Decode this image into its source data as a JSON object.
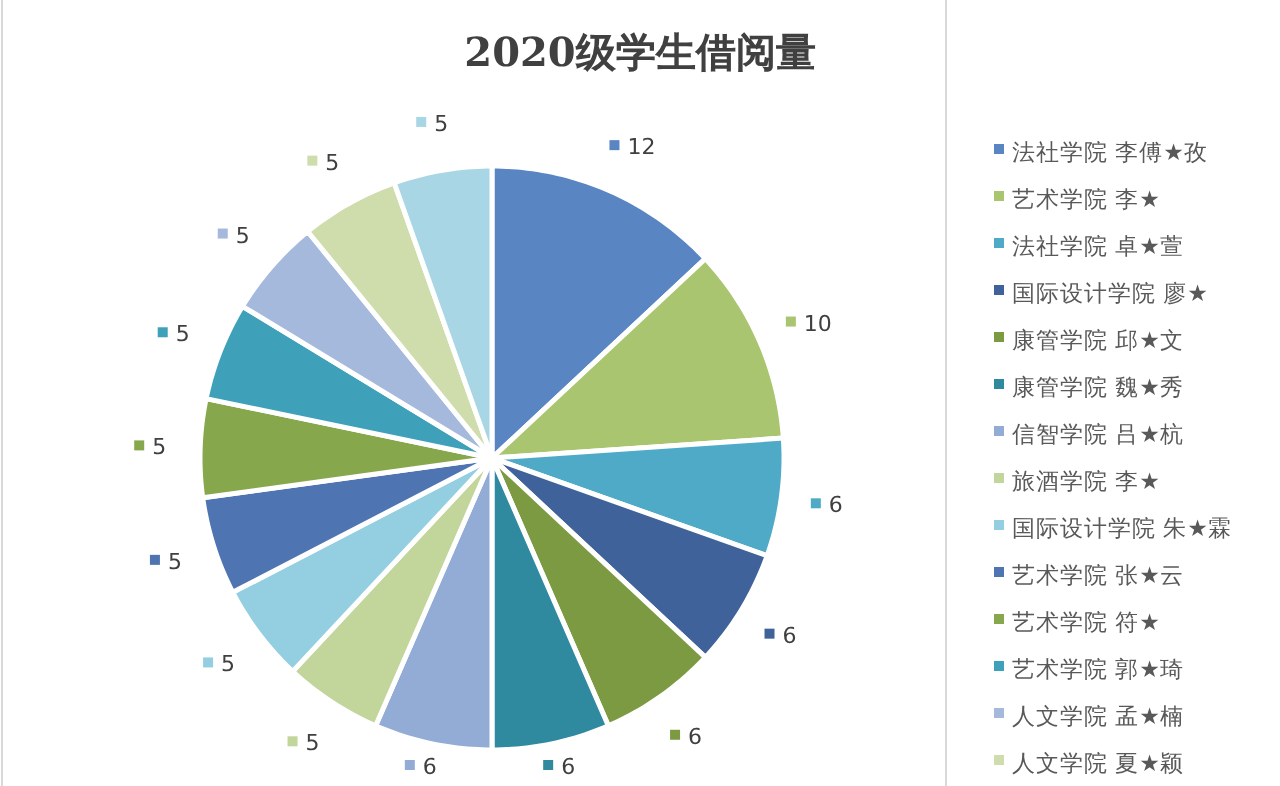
{
  "chart_data": {
    "type": "pie",
    "title": "2020级学生借阅量",
    "categories": [
      "法社学院 李傅★孜",
      "艺术学院 李★",
      "法社学院 卓★萱",
      "国际设计学院 廖★",
      "康管学院 邱★文",
      "康管学院 魏★秀",
      "信智学院 吕★杭",
      "旅酒学院 李★",
      "国际设计学院 朱★霖",
      "艺术学院 张★云",
      "艺术学院 符★",
      "艺术学院 郭★琦",
      "人文学院 孟★楠",
      "人文学院 夏★颖",
      null
    ],
    "values": [
      12,
      10,
      6,
      6,
      6,
      6,
      6,
      5,
      5,
      5,
      5,
      5,
      5,
      5,
      5
    ],
    "colors": [
      "#5a85c3",
      "#a9c56f",
      "#4eaac6",
      "#3e6299",
      "#7c9a42",
      "#2f8aa0",
      "#93acd6",
      "#c2d59a",
      "#93cfe0",
      "#4f74b2",
      "#87a74c",
      "#3fa0b9",
      "#a5b9dc",
      "#cfdcac",
      "#a8d6e4"
    ],
    "data_labels": true,
    "legend": "right"
  }
}
